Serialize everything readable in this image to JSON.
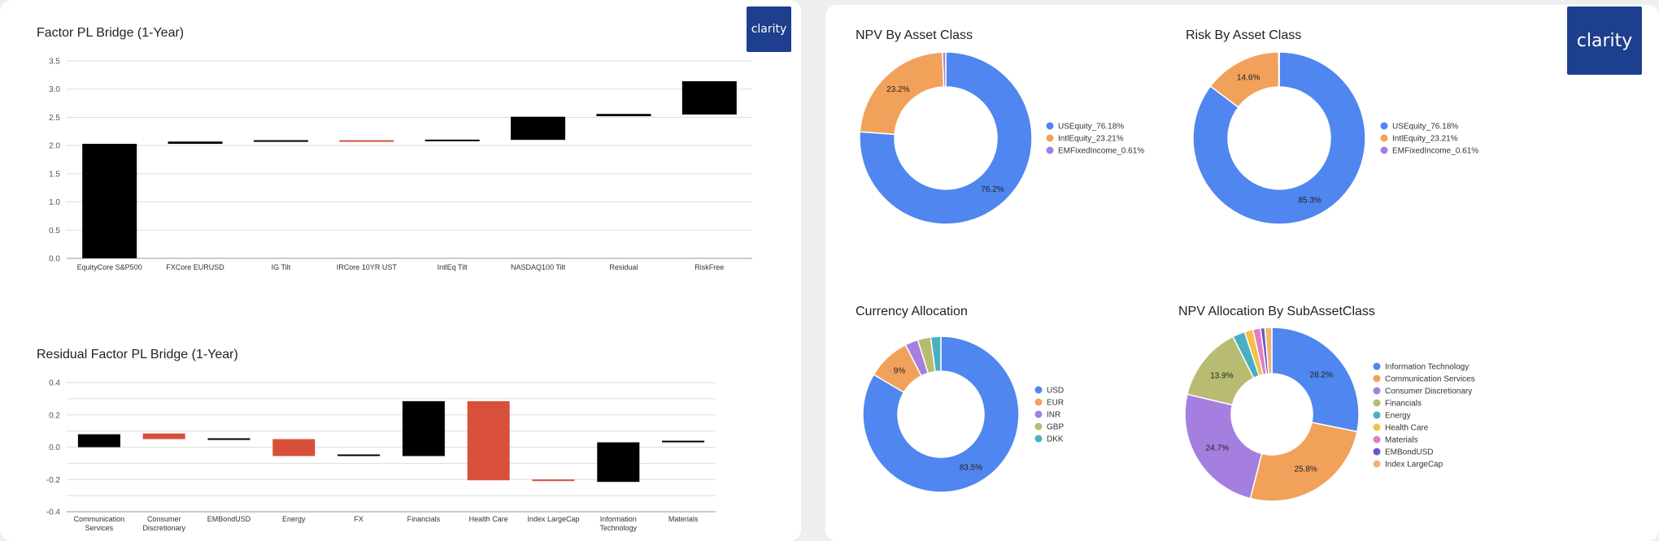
{
  "brand": {
    "logo_text": "clarity",
    "logo_color": "#1e3f8e"
  },
  "colors": {
    "black": "#000000",
    "red": "#d9503a",
    "grid": "#dddddd",
    "axis_text": "#555555"
  },
  "chart_data": [
    {
      "id": "factor",
      "type": "bar",
      "subtype": "waterfall",
      "title": "Factor PL Bridge (1-Year)",
      "categories": [
        "EquityCore S&P500",
        "FXCore EURUSD",
        "IG Tilt",
        "IRCore 10YR UST",
        "IntlEq Tilt",
        "NASDAQ100 Tilt",
        "Residual",
        "RiskFree"
      ],
      "ranges": [
        [
          0,
          2.03
        ],
        [
          2.03,
          2.07
        ],
        [
          2.07,
          2.09
        ],
        [
          2.07,
          2.09
        ],
        [
          2.08,
          2.1
        ],
        [
          2.1,
          2.51
        ],
        [
          2.52,
          2.56
        ],
        [
          2.55,
          3.14
        ]
      ],
      "colors": [
        "#000000",
        "#000000",
        "#000000",
        "#d9503a",
        "#000000",
        "#000000",
        "#000000",
        "#000000"
      ],
      "ylim": [
        0,
        3.5
      ],
      "yticks": [
        0,
        0.5,
        1,
        1.5,
        2,
        2.5,
        3,
        3.5
      ],
      "ytick_labels": [
        "0.0",
        "0.5",
        "1.0",
        "1.5",
        "2.0",
        "2.5",
        "3.0",
        "3.5"
      ],
      "grid": true
    },
    {
      "id": "residual",
      "type": "bar",
      "subtype": "waterfall",
      "title": "Residual Factor PL Bridge (1-Year)",
      "categories": [
        [
          "Communication",
          "Services"
        ],
        [
          "Consumer",
          "Discretionary"
        ],
        [
          "EMBondUSD"
        ],
        [
          "Energy"
        ],
        [
          "FX"
        ],
        [
          "Financials"
        ],
        [
          "Health Care"
        ],
        [
          "Index LargeCap"
        ],
        [
          "Information",
          "Technology"
        ],
        [
          "Materials"
        ]
      ],
      "ranges": [
        [
          0,
          0.08
        ],
        [
          0.05,
          0.085
        ],
        [
          0.045,
          0.055
        ],
        [
          -0.055,
          0.05
        ],
        [
          -0.055,
          -0.045
        ],
        [
          -0.055,
          0.285
        ],
        [
          -0.205,
          0.285
        ],
        [
          -0.21,
          -0.2
        ],
        [
          -0.215,
          0.03
        ],
        [
          0.03,
          0.04
        ]
      ],
      "colors": [
        "#000000",
        "#d9503a",
        "#000000",
        "#d9503a",
        "#000000",
        "#000000",
        "#d9503a",
        "#d9503a",
        "#000000",
        "#000000"
      ],
      "ylim": [
        -0.4,
        0.4
      ],
      "yticks": [
        -0.4,
        -0.3,
        -0.2,
        -0.1,
        0,
        0.1,
        0.2,
        0.3,
        0.4
      ],
      "ytick_labels": [
        "-0.4",
        "",
        "-0.2",
        "",
        "0.0",
        "",
        "0.2",
        "",
        "0.4"
      ],
      "grid": true
    },
    {
      "id": "npv",
      "type": "pie",
      "subtype": "donut",
      "title": "NPV By Asset Class",
      "labels": [
        "USEquity_76.18%",
        "IntlEquity_23.21%",
        "EMFixedIncome_0.61%"
      ],
      "values": [
        76.18,
        23.21,
        0.61
      ],
      "colors": [
        "#4f86ef",
        "#f2a15b",
        "#a57fe0"
      ],
      "slice_labels": [
        "76.2%",
        "23.2%",
        ""
      ],
      "legend": "right"
    },
    {
      "id": "risk",
      "type": "pie",
      "subtype": "donut",
      "title": "Risk By Asset Class",
      "labels": [
        "USEquity_76.18%",
        "IntlEquity_23.21%",
        "EMFixedIncome_0.61%"
      ],
      "values": [
        85.3,
        14.6,
        0.1
      ],
      "colors": [
        "#4f86ef",
        "#f2a15b",
        "#a57fe0"
      ],
      "slice_labels": [
        "85.3%",
        "14.6%",
        ""
      ],
      "legend": "right"
    },
    {
      "id": "currency",
      "type": "pie",
      "subtype": "donut",
      "title": "Currency Allocation",
      "labels": [
        "USD",
        "EUR",
        "INR",
        "GBP",
        "DKK"
      ],
      "values": [
        83.5,
        9,
        2.7,
        2.7,
        2.1
      ],
      "colors": [
        "#4f86ef",
        "#f2a15b",
        "#a57fe0",
        "#b7bc72",
        "#4bafc4"
      ],
      "slice_labels": [
        "83.5%",
        "9%",
        "",
        "",
        ""
      ],
      "legend": "right"
    },
    {
      "id": "subasset",
      "type": "pie",
      "subtype": "donut",
      "title": "NPV Allocation By SubAssetClass",
      "labels": [
        "Information Technology",
        "Communication Services",
        "Consumer Discretionary",
        "Financials",
        "Energy",
        "Health Care",
        "Materials",
        "EMBondUSD",
        "Index LargeCap"
      ],
      "values": [
        28.2,
        25.8,
        24.7,
        13.9,
        2.3,
        1.6,
        1.4,
        0.8,
        1.3
      ],
      "colors": [
        "#4f86ef",
        "#f2a15b",
        "#a57fe0",
        "#b7bc72",
        "#4bafc4",
        "#f2c248",
        "#e07ec0",
        "#6e55c9",
        "#edb57a"
      ],
      "slice_labels": [
        "28.2%",
        "25.8%",
        "24.7%",
        "13.9%",
        "",
        "",
        "",
        "",
        ""
      ],
      "legend": "right"
    }
  ]
}
